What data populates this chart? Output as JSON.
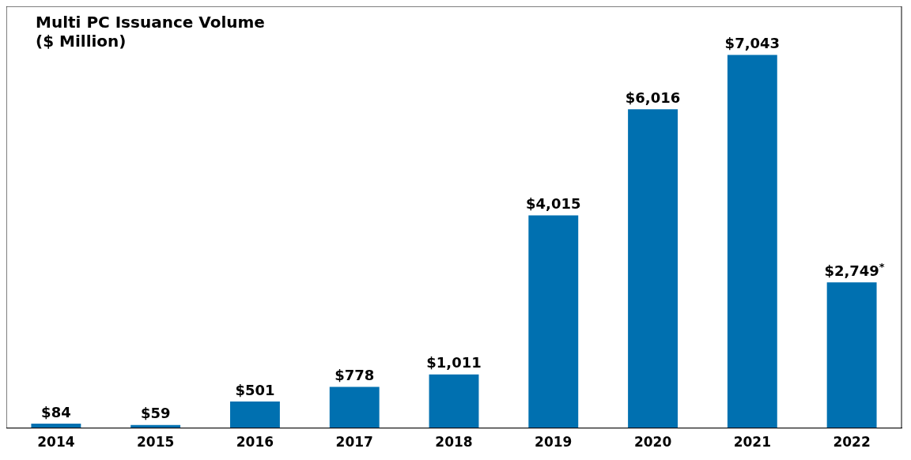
{
  "chart_data": {
    "type": "bar",
    "title": "Multi PC Issuance Volume\n($ Million)",
    "categories": [
      "2014",
      "2015",
      "2016",
      "2017",
      "2018",
      "2019",
      "2020",
      "2021",
      "2022"
    ],
    "values": [
      84,
      59,
      501,
      778,
      1011,
      4015,
      6016,
      7043,
      2749
    ],
    "value_labels": [
      "$84",
      "$59",
      "$501",
      "$778",
      "$1,011",
      "$4,015",
      "$6,016",
      "$7,043",
      "$2,749$^{*}$"
    ],
    "color": "#0070b0",
    "grid": false,
    "legend": false
  }
}
